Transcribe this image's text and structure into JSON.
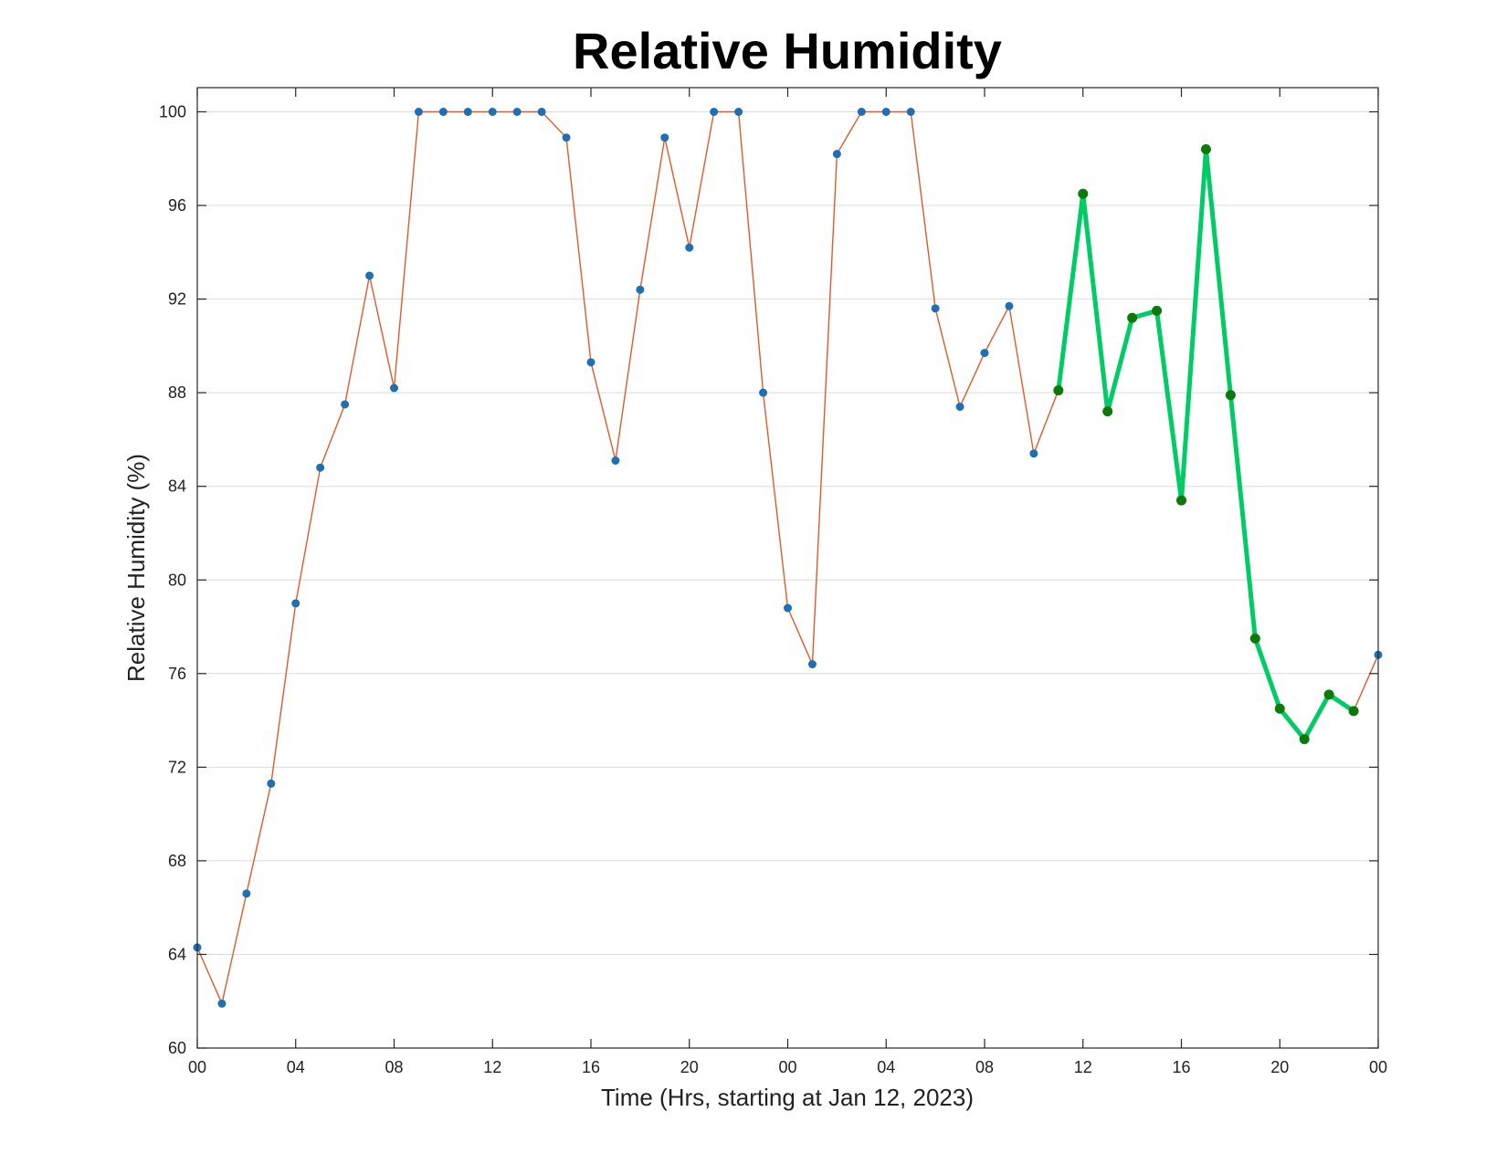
{
  "chart_data": {
    "type": "line",
    "title": "Relative Humidity",
    "xlabel": "Time (Hrs, starting at Jan 12, 2023)",
    "ylabel": "Relative Humidity (%)",
    "xlim": [
      0,
      48
    ],
    "ylim": [
      60,
      101
    ],
    "grid": "horizontal",
    "x_ticks": [
      0,
      4,
      8,
      12,
      16,
      20,
      24,
      28,
      32,
      36,
      40,
      44,
      48
    ],
    "x_tick_labels": [
      "00",
      "04",
      "08",
      "12",
      "16",
      "20",
      "00",
      "04",
      "08",
      "12",
      "16",
      "20",
      "00"
    ],
    "y_ticks": [
      60,
      64,
      68,
      72,
      76,
      80,
      84,
      88,
      92,
      96,
      100
    ],
    "y_tick_labels": [
      "60",
      "64",
      "68",
      "72",
      "76",
      "80",
      "84",
      "88",
      "92",
      "96",
      "100"
    ],
    "series": [
      {
        "line_color": "#e05a2a",
        "marker_color": "#1f6fb4",
        "x": [
          0,
          1,
          2,
          3,
          4,
          5,
          6,
          7,
          8,
          9,
          10,
          11,
          12,
          13,
          14,
          15,
          16,
          17,
          18,
          19,
          20,
          21,
          22,
          23,
          24,
          25,
          26,
          27,
          28,
          29,
          30,
          31,
          32,
          33,
          34,
          35,
          36,
          37,
          38,
          39,
          40,
          41,
          42,
          43,
          44,
          45,
          46,
          47,
          48
        ],
        "y": [
          64.3,
          61.9,
          66.6,
          71.3,
          79.0,
          84.8,
          87.5,
          93.0,
          88.2,
          100,
          100,
          100,
          100,
          100,
          100,
          98.9,
          89.3,
          85.1,
          92.4,
          98.9,
          94.2,
          100,
          100,
          88.0,
          78.8,
          76.4,
          98.2,
          100,
          100,
          100,
          91.6,
          87.4,
          89.7,
          91.7,
          85.4,
          88.1,
          96.5,
          87.2,
          91.2,
          91.5,
          83.4,
          98.4,
          87.9,
          77.5,
          74.5,
          73.2,
          75.1,
          74.4,
          76.8
        ]
      },
      {
        "line_color": "#00cc66",
        "marker_color": "#0b7a0b",
        "x": [
          35,
          36,
          37,
          38,
          39,
          40,
          41,
          42,
          43,
          44,
          45,
          46,
          47
        ],
        "y": [
          88.1,
          96.5,
          87.2,
          91.2,
          91.5,
          83.4,
          98.4,
          87.9,
          77.5,
          74.5,
          73.2,
          75.1,
          74.4
        ]
      }
    ]
  }
}
